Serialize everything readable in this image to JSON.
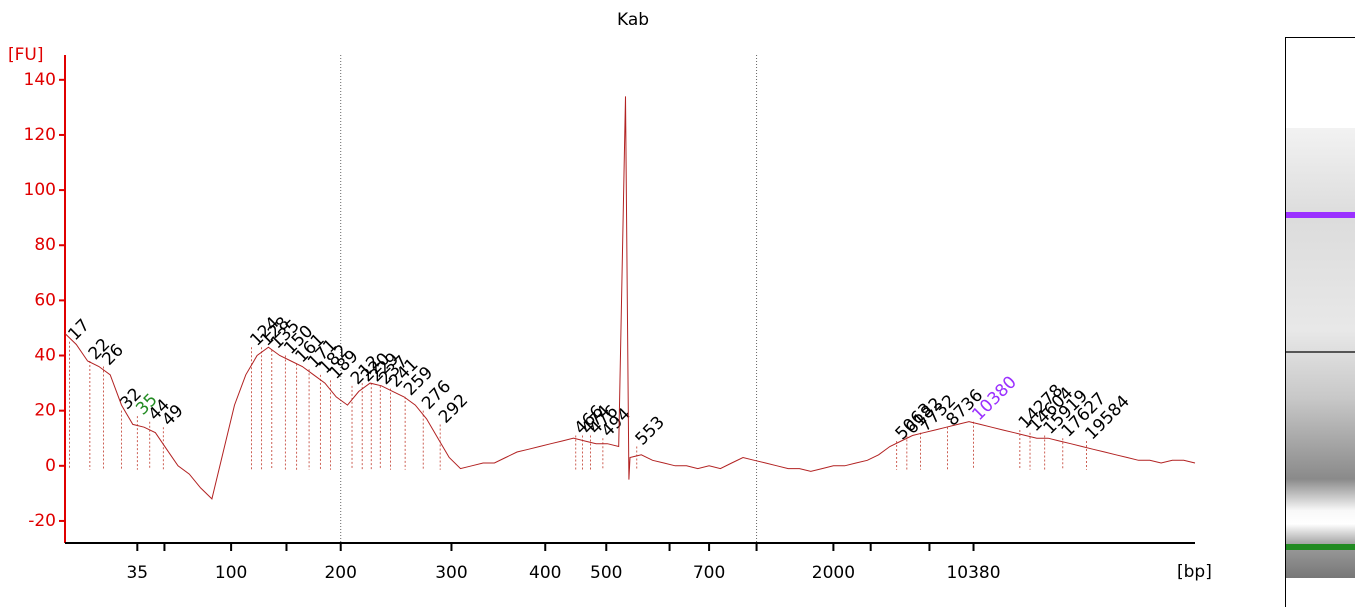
{
  "chart_data": {
    "type": "line",
    "title": "Kab",
    "y_label": "[FU]",
    "x_label": "[bp]",
    "xlim": [
      0,
      100
    ],
    "ylim": [
      -28,
      149
    ],
    "yticks": [
      -20,
      0,
      20,
      40,
      60,
      80,
      100,
      120,
      140
    ],
    "xticks": [
      6.4,
      14.7,
      24.4,
      34.2,
      42.5,
      47.9,
      57,
      68,
      80.4
    ],
    "xtick_labels": [
      "35",
      "100",
      "200",
      "300",
      "400",
      "500",
      "700",
      "2000",
      "10380"
    ],
    "xminor_ticks": [
      8.8,
      19.6,
      53.5,
      61.2,
      71.3,
      76.5
    ],
    "xmarkers": [
      24.4,
      61.2
    ],
    "x": [
      0,
      1,
      2,
      3,
      4,
      5,
      6,
      7,
      8,
      9,
      10,
      11,
      12,
      13,
      14,
      15,
      16,
      17,
      18,
      19,
      20,
      21,
      22,
      23,
      24,
      25,
      26,
      27,
      28,
      29,
      30,
      31,
      32,
      33,
      34,
      35,
      36,
      37,
      38,
      39,
      40,
      41,
      42,
      43,
      44,
      45,
      46,
      47,
      48,
      49,
      49.6,
      49.9,
      50,
      51,
      52,
      53,
      54,
      55,
      56,
      57,
      58,
      59,
      60,
      61,
      62,
      63,
      64,
      65,
      66,
      67,
      68,
      69,
      70,
      71,
      72,
      73,
      74,
      75,
      76,
      77,
      78,
      79,
      80,
      81,
      82,
      83,
      84,
      85,
      86,
      87,
      88,
      89,
      90,
      91,
      92,
      93,
      94,
      95,
      96,
      97,
      98,
      99,
      100
    ],
    "series": [
      {
        "name": "Kab",
        "color": "#b22222",
        "values": [
          48,
          44,
          38,
          36,
          33,
          22,
          15,
          14,
          12,
          6,
          0,
          -3,
          -8,
          -12,
          5,
          22,
          33,
          40,
          43,
          40,
          38,
          36,
          33,
          30,
          25,
          22,
          27,
          30,
          29,
          27,
          25,
          22,
          17,
          10,
          3,
          -1,
          0,
          1,
          1,
          3,
          5,
          6,
          7,
          8,
          9,
          10,
          9,
          8,
          8,
          7,
          134,
          -5,
          3,
          4,
          2,
          1,
          0,
          0,
          -1,
          0,
          -1,
          1,
          3,
          2,
          1,
          0,
          -1,
          -1,
          -2,
          -1,
          0,
          0,
          1,
          2,
          4,
          7,
          9,
          11,
          12,
          13,
          14,
          15,
          16,
          15,
          14,
          13,
          12,
          11,
          10,
          10,
          9,
          8,
          7,
          6,
          5,
          4,
          3,
          2,
          2,
          1,
          2,
          2,
          1
        ]
      }
    ],
    "peak_color": "#000000",
    "peaks": [
      {
        "size": 17,
        "x": 0.4,
        "y": 45
      },
      {
        "size": 22,
        "x": 2.2,
        "y": 38
      },
      {
        "size": 26,
        "x": 3.4,
        "y": 36
      },
      {
        "size": 32,
        "x": 5.0,
        "y": 20
      },
      {
        "size": 35,
        "x": 6.4,
        "y": 18,
        "color": "#228b22"
      },
      {
        "size": 44,
        "x": 7.5,
        "y": 16
      },
      {
        "size": 49,
        "x": 8.7,
        "y": 14
      },
      {
        "size": 124,
        "x": 16.5,
        "y": 43
      },
      {
        "size": 128,
        "x": 17.4,
        "y": 43
      },
      {
        "size": 135,
        "x": 18.3,
        "y": 42
      },
      {
        "size": 150,
        "x": 19.5,
        "y": 40
      },
      {
        "size": 161,
        "x": 20.5,
        "y": 37
      },
      {
        "size": 171,
        "x": 21.6,
        "y": 35
      },
      {
        "size": 182,
        "x": 22.6,
        "y": 33
      },
      {
        "size": 189,
        "x": 23.5,
        "y": 31
      },
      {
        "size": 212,
        "x": 25.4,
        "y": 29
      },
      {
        "size": 220,
        "x": 26.3,
        "y": 30
      },
      {
        "size": 229,
        "x": 27.1,
        "y": 30
      },
      {
        "size": 237,
        "x": 27.9,
        "y": 29
      },
      {
        "size": 241,
        "x": 28.8,
        "y": 28
      },
      {
        "size": 259,
        "x": 30.1,
        "y": 25
      },
      {
        "size": 276,
        "x": 31.7,
        "y": 20
      },
      {
        "size": 292,
        "x": 33.2,
        "y": 15
      },
      {
        "size": 466,
        "x": 45.2,
        "y": 11
      },
      {
        "size": 474,
        "x": 45.8,
        "y": 11
      },
      {
        "size": 476,
        "x": 46.5,
        "y": 11
      },
      {
        "size": 494,
        "x": 47.6,
        "y": 10
      },
      {
        "size": 553,
        "x": 50.6,
        "y": 7
      },
      {
        "size": 5063,
        "x": 73.6,
        "y": 9
      },
      {
        "size": 6182,
        "x": 74.5,
        "y": 11
      },
      {
        "size": 7732,
        "x": 75.7,
        "y": 12
      },
      {
        "size": 8736,
        "x": 78.1,
        "y": 14
      },
      {
        "size": 10380,
        "x": 80.4,
        "y": 16,
        "color": "#9b30ff"
      },
      {
        "size": 14278,
        "x": 84.5,
        "y": 13
      },
      {
        "size": 14604,
        "x": 85.4,
        "y": 12
      },
      {
        "size": 15919,
        "x": 86.7,
        "y": 11
      },
      {
        "size": 17627,
        "x": 88.3,
        "y": 10
      },
      {
        "size": 19584,
        "x": 90.4,
        "y": 9
      }
    ],
    "axis_color": "#e00000"
  }
}
